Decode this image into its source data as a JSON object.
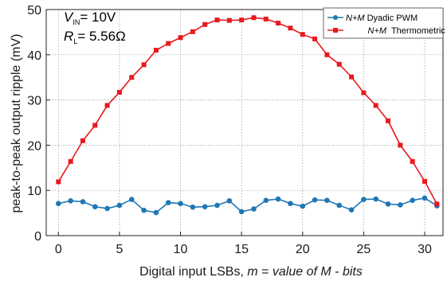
{
  "chart_data": {
    "type": "line",
    "xlabel_parts": [
      "Digital input LSBs, ",
      "m",
      " = ",
      "value of M - bits"
    ],
    "ylabel": "peak-to-peak output ripple (mV)",
    "xlim": [
      -1,
      31.5
    ],
    "ylim": [
      0,
      50
    ],
    "xticks": [
      0,
      5,
      10,
      15,
      20,
      25,
      30
    ],
    "yticks": [
      0,
      10,
      20,
      30,
      40,
      50
    ],
    "grid": true,
    "legend_position": "top-right",
    "annotations": [
      {
        "symbol": "V",
        "sub": "IN",
        "text": "= 10V"
      },
      {
        "symbol": "R",
        "sub": "L",
        "text": "= 5.56Ω"
      }
    ],
    "x": [
      0,
      1,
      2,
      3,
      4,
      5,
      6,
      7,
      8,
      9,
      10,
      11,
      12,
      13,
      14,
      15,
      16,
      17,
      18,
      19,
      20,
      21,
      22,
      23,
      24,
      25,
      26,
      27,
      28,
      29,
      30,
      31
    ],
    "series": [
      {
        "name_parts": [
          "N+M",
          " Dyadic PWM"
        ],
        "color": "#1f77b4",
        "marker": "circle",
        "values": [
          7.1,
          7.7,
          7.5,
          6.4,
          6.0,
          6.7,
          8.0,
          5.6,
          5.1,
          7.3,
          7.1,
          6.3,
          6.4,
          6.7,
          7.7,
          5.3,
          5.9,
          7.8,
          8.1,
          7.1,
          6.5,
          7.9,
          7.8,
          6.7,
          5.7,
          8.0,
          8.1,
          7.0,
          6.8,
          7.8,
          8.3,
          6.6
        ]
      },
      {
        "name_parts": [
          "N+M",
          "  Thermometric"
        ],
        "color": "#e8191f",
        "marker": "square",
        "values": [
          11.9,
          16.4,
          21.0,
          24.4,
          28.8,
          31.7,
          35.0,
          37.8,
          41.0,
          42.5,
          43.8,
          45.1,
          46.7,
          47.7,
          47.6,
          47.7,
          48.2,
          47.9,
          47.0,
          45.9,
          44.5,
          43.5,
          40.0,
          37.9,
          35.1,
          31.6,
          28.8,
          25.4,
          20.0,
          16.4,
          12.0,
          7.0
        ]
      }
    ]
  }
}
